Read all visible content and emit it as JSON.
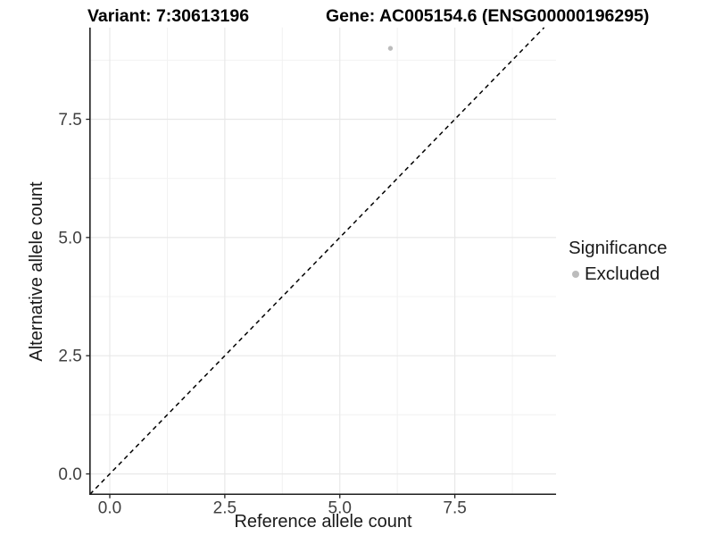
{
  "chart_data": {
    "type": "scatter",
    "titles": {
      "left": "Variant: 7:30613196",
      "right": "Gene: AC005154.6 (ENSG00000196295)"
    },
    "xlabel": "Reference allele count",
    "ylabel": "Alternative allele count",
    "x_axis": {
      "ticks": [
        0,
        2.5,
        5,
        7.5
      ],
      "tick_labels": [
        "0.0",
        "2.5",
        "5.0",
        "7.5"
      ],
      "range": [
        -0.43,
        9.7
      ]
    },
    "y_axis": {
      "ticks": [
        0,
        2.5,
        5,
        7.5
      ],
      "tick_labels": [
        "0.0",
        "2.5",
        "5.0",
        "7.5"
      ],
      "range": [
        -0.43,
        9.44
      ]
    },
    "grid": {
      "major": true,
      "minor": true
    },
    "series": [
      {
        "name": "Excluded",
        "color": "#bcbcbc",
        "points": [
          {
            "x": 6.1,
            "y": 9.0
          }
        ]
      }
    ],
    "reference_line": {
      "kind": "identity",
      "slope": 1,
      "intercept": 0,
      "style": "dashed",
      "color": "#000000"
    },
    "legend": {
      "title": "Significance",
      "position": "right",
      "items": [
        {
          "label": "Excluded",
          "color": "#bcbcbc"
        }
      ]
    }
  },
  "colors": {
    "background": "#ffffff",
    "grid_major": "#e8e8e8",
    "grid_minor": "#f2f2f2",
    "axis_line": "#1f1f1f",
    "tick_text": "#404040",
    "text": "#1a1a1a",
    "point": "#bcbcbc"
  }
}
